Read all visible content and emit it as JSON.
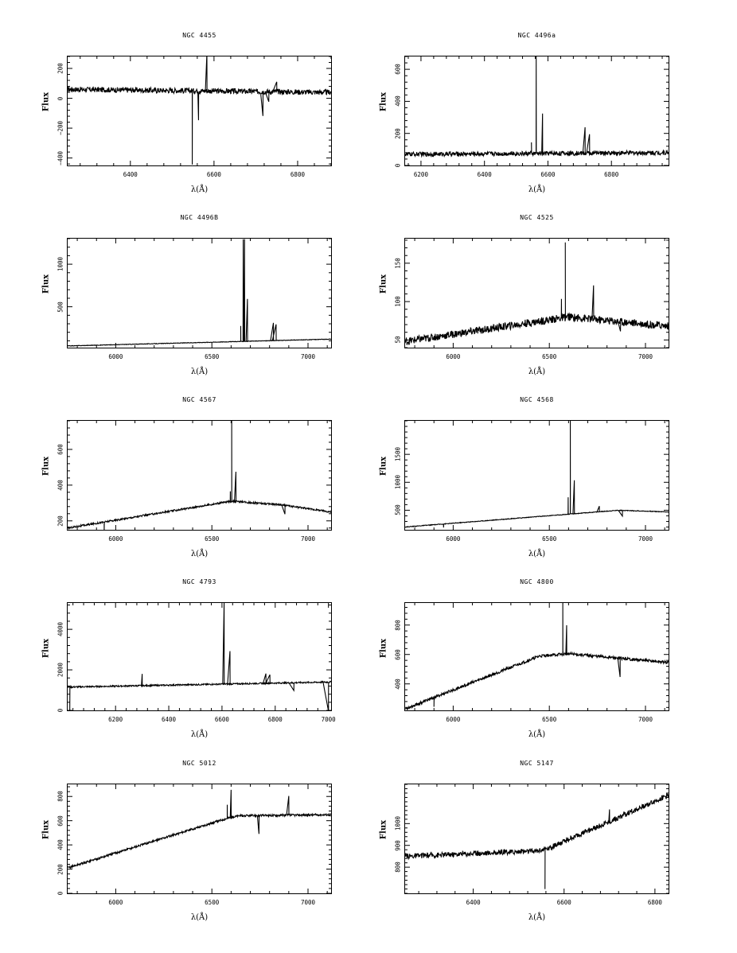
{
  "chart_data": [
    {
      "type": "line",
      "title": "NGC 4455",
      "xlabel": "λ(Å)",
      "ylabel": "Flux",
      "xlim": [
        6250,
        6880
      ],
      "ylim": [
        -450,
        280
      ],
      "xticks": [
        {
          "v": 6400,
          "l": "6400"
        },
        {
          "v": 6600,
          "l": "6600"
        },
        {
          "v": 6800,
          "l": "6800"
        }
      ],
      "yticks": [
        {
          "v": -400,
          "l": "−400"
        },
        {
          "v": -200,
          "l": "−200"
        },
        {
          "v": 0,
          "l": "0"
        },
        {
          "v": 200,
          "l": "200"
        }
      ],
      "base": [
        [
          6250,
          60
        ],
        [
          6880,
          40
        ]
      ],
      "noise": 18,
      "features": [
        {
          "x": 6548,
          "h": -480
        },
        {
          "x": 6563,
          "h": -180
        },
        {
          "x": 6583,
          "h": 250
        },
        {
          "x": 6717,
          "h": -150
        },
        {
          "x": 6731,
          "h": -60
        },
        {
          "x": 6750,
          "h": 60
        }
      ]
    },
    {
      "type": "line",
      "title": "NGC 4496a",
      "xlabel": "λ(Å)",
      "ylabel": "Flux",
      "xlim": [
        6150,
        6980
      ],
      "ylim": [
        0,
        680
      ],
      "xticks": [
        {
          "v": 6200,
          "l": "6200"
        },
        {
          "v": 6400,
          "l": "6400"
        },
        {
          "v": 6600,
          "l": "6600"
        },
        {
          "v": 6800,
          "l": "6800"
        }
      ],
      "yticks": [
        {
          "v": 0,
          "l": "0"
        },
        {
          "v": 200,
          "l": "200"
        },
        {
          "v": 400,
          "l": "400"
        },
        {
          "v": 600,
          "l": "600"
        }
      ],
      "base": [
        [
          6150,
          70
        ],
        [
          6980,
          80
        ]
      ],
      "noise": 14,
      "features": [
        {
          "x": 6563,
          "h": 620
        },
        {
          "x": 6583,
          "h": 250
        },
        {
          "x": 6548,
          "h": 60
        },
        {
          "x": 6717,
          "h": 170
        },
        {
          "x": 6731,
          "h": 120
        }
      ]
    },
    {
      "type": "line",
      "title": "NGC 4496B",
      "xlabel": "λ(Å)",
      "ylabel": "Flux",
      "xlim": [
        5750,
        7120
      ],
      "ylim": [
        20,
        1300
      ],
      "xticks": [
        {
          "v": 6000,
          "l": "6000"
        },
        {
          "v": 6500,
          "l": "6500"
        },
        {
          "v": 7000,
          "l": "7000"
        }
      ],
      "yticks": [
        {
          "v": 500,
          "l": "500"
        },
        {
          "v": 1000,
          "l": "1000"
        }
      ],
      "base": [
        [
          5750,
          40
        ],
        [
          7120,
          120
        ]
      ],
      "noise": 3,
      "features": [
        {
          "x": 6663,
          "h": 1200
        },
        {
          "x": 6670,
          "h": 1200
        },
        {
          "x": 6685,
          "h": 500
        },
        {
          "x": 6650,
          "h": 180
        },
        {
          "x": 6820,
          "h": 210
        },
        {
          "x": 6834,
          "h": 190
        }
      ]
    },
    {
      "type": "line",
      "title": "NGC 4525",
      "xlabel": "λ(Å)",
      "ylabel": "Flux",
      "xlim": [
        5750,
        7120
      ],
      "ylim": [
        40,
        182
      ],
      "xticks": [
        {
          "v": 6000,
          "l": "6000"
        },
        {
          "v": 6500,
          "l": "6500"
        },
        {
          "v": 7000,
          "l": "7000"
        }
      ],
      "yticks": [
        {
          "v": 50,
          "l": "50"
        },
        {
          "v": 100,
          "l": "100"
        },
        {
          "v": 150,
          "l": "150"
        }
      ],
      "base": [
        [
          5750,
          48
        ],
        [
          6600,
          80
        ],
        [
          7120,
          68
        ]
      ],
      "noise": 5,
      "features": [
        {
          "x": 6583,
          "h": 100
        },
        {
          "x": 6563,
          "h": 25
        },
        {
          "x": 6730,
          "h": 40
        },
        {
          "x": 6870,
          "h": -12
        }
      ]
    },
    {
      "type": "line",
      "title": "NGC 4567",
      "xlabel": "λ(Å)",
      "ylabel": "Flux",
      "xlim": [
        5750,
        7120
      ],
      "ylim": [
        150,
        760
      ],
      "xticks": [
        {
          "v": 6000,
          "l": "6000"
        },
        {
          "v": 6500,
          "l": "6500"
        },
        {
          "v": 7000,
          "l": "7000"
        }
      ],
      "yticks": [
        {
          "v": 200,
          "l": "200"
        },
        {
          "v": 400,
          "l": "400"
        },
        {
          "v": 600,
          "l": "600"
        }
      ],
      "base": [
        [
          5750,
          160
        ],
        [
          6600,
          310
        ],
        [
          6860,
          290
        ],
        [
          7120,
          250
        ]
      ],
      "noise": 5,
      "features": [
        {
          "x": 6603,
          "h": 600
        },
        {
          "x": 6596,
          "h": 60
        },
        {
          "x": 6625,
          "h": 170
        },
        {
          "x": 5940,
          "h": -60
        },
        {
          "x": 6880,
          "h": -50
        }
      ]
    },
    {
      "type": "line",
      "title": "NGC 4568",
      "xlabel": "λ(Å)",
      "ylabel": "Flux",
      "xlim": [
        5750,
        7120
      ],
      "ylim": [
        150,
        2100
      ],
      "xticks": [
        {
          "v": 6000,
          "l": "6000"
        },
        {
          "v": 6500,
          "l": "6500"
        },
        {
          "v": 7000,
          "l": "7000"
        }
      ],
      "yticks": [
        {
          "v": 500,
          "l": "500"
        },
        {
          "v": 1000,
          "l": "1000"
        },
        {
          "v": 1500,
          "l": "1500"
        }
      ],
      "base": [
        [
          5750,
          200
        ],
        [
          6860,
          500
        ],
        [
          7120,
          470
        ]
      ],
      "noise": 6,
      "features": [
        {
          "x": 6609,
          "h": 2100
        },
        {
          "x": 6598,
          "h": 300
        },
        {
          "x": 6630,
          "h": 600
        },
        {
          "x": 6760,
          "h": 100
        },
        {
          "x": 5950,
          "h": -60
        },
        {
          "x": 6880,
          "h": -100
        }
      ]
    },
    {
      "type": "line",
      "title": "NGC 4793",
      "xlabel": "λ(Å)",
      "ylabel": "Flux",
      "xlim": [
        6020,
        7010
      ],
      "ylim": [
        0,
        5300
      ],
      "xticks": [
        {
          "v": 6200,
          "l": "6200"
        },
        {
          "v": 6400,
          "l": "6400"
        },
        {
          "v": 6600,
          "l": "6600"
        },
        {
          "v": 6800,
          "l": "6800"
        },
        {
          "v": 7000,
          "l": "7000"
        }
      ],
      "yticks": [
        {
          "v": 0,
          "l": "0"
        },
        {
          "v": 2000,
          "l": "2000"
        },
        {
          "v": 4000,
          "l": "4000"
        }
      ],
      "base": [
        [
          6020,
          1150
        ],
        [
          7010,
          1400
        ]
      ],
      "noise": 35,
      "features": [
        {
          "x": 6028,
          "h": -1200
        },
        {
          "x": 6300,
          "h": 600
        },
        {
          "x": 6608,
          "h": 4000
        },
        {
          "x": 6630,
          "h": 1600
        },
        {
          "x": 6765,
          "h": 500
        },
        {
          "x": 6780,
          "h": 400
        },
        {
          "x": 6870,
          "h": -350
        },
        {
          "x": 7000,
          "h": -1400
        }
      ]
    },
    {
      "type": "line",
      "title": "NGC 4800",
      "xlabel": "λ(Å)",
      "ylabel": "Flux",
      "xlim": [
        5750,
        7120
      ],
      "ylim": [
        220,
        950
      ],
      "xticks": [
        {
          "v": 6000,
          "l": "6000"
        },
        {
          "v": 6500,
          "l": "6500"
        },
        {
          "v": 7000,
          "l": "7000"
        }
      ],
      "yticks": [
        {
          "v": 400,
          "l": "400"
        },
        {
          "v": 600,
          "l": "600"
        },
        {
          "v": 800,
          "l": "800"
        }
      ],
      "base": [
        [
          5750,
          230
        ],
        [
          6450,
          590
        ],
        [
          6600,
          605
        ],
        [
          7120,
          545
        ]
      ],
      "noise": 10,
      "features": [
        {
          "x": 6570,
          "h": 380
        },
        {
          "x": 6590,
          "h": 200
        },
        {
          "x": 5900,
          "h": -60
        },
        {
          "x": 6868,
          "h": -130
        }
      ]
    },
    {
      "type": "line",
      "title": "NGC 5012",
      "xlabel": "λ(Å)",
      "ylabel": "Flux",
      "xlim": [
        5750,
        7120
      ],
      "ylim": [
        0,
        900
      ],
      "xticks": [
        {
          "v": 6000,
          "l": "6000"
        },
        {
          "v": 6500,
          "l": "6500"
        },
        {
          "v": 7000,
          "l": "7000"
        }
      ],
      "yticks": [
        {
          "v": 0,
          "l": "0"
        },
        {
          "v": 200,
          "l": "200"
        },
        {
          "v": 400,
          "l": "400"
        },
        {
          "v": 600,
          "l": "600"
        },
        {
          "v": 800,
          "l": "800"
        }
      ],
      "base": [
        [
          5750,
          210
        ],
        [
          6580,
          620
        ],
        [
          6640,
          640
        ],
        [
          7120,
          650
        ]
      ],
      "noise": 9,
      "features": [
        {
          "x": 6580,
          "h": 110
        },
        {
          "x": 6600,
          "h": 230
        },
        {
          "x": 6745,
          "h": -150
        },
        {
          "x": 6900,
          "h": 150
        }
      ]
    },
    {
      "type": "line",
      "title": "NGC 5147",
      "xlabel": "λ(Å)",
      "ylabel": "Flux",
      "xlim": [
        6250,
        6830
      ],
      "ylim": [
        680,
        1180
      ],
      "xticks": [
        {
          "v": 6400,
          "l": "6400"
        },
        {
          "v": 6600,
          "l": "6600"
        },
        {
          "v": 6800,
          "l": "6800"
        }
      ],
      "yticks": [
        {
          "v": 800,
          "l": "800"
        },
        {
          "v": 900,
          "l": "900"
        },
        {
          "v": 1000,
          "l": "1000"
        }
      ],
      "base": [
        [
          6250,
          850
        ],
        [
          6540,
          875
        ],
        [
          6570,
          890
        ],
        [
          6830,
          1130
        ]
      ],
      "noise": 12,
      "features": [
        {
          "x": 6558,
          "h": -190
        },
        {
          "x": 6700,
          "h": 60
        }
      ]
    }
  ]
}
